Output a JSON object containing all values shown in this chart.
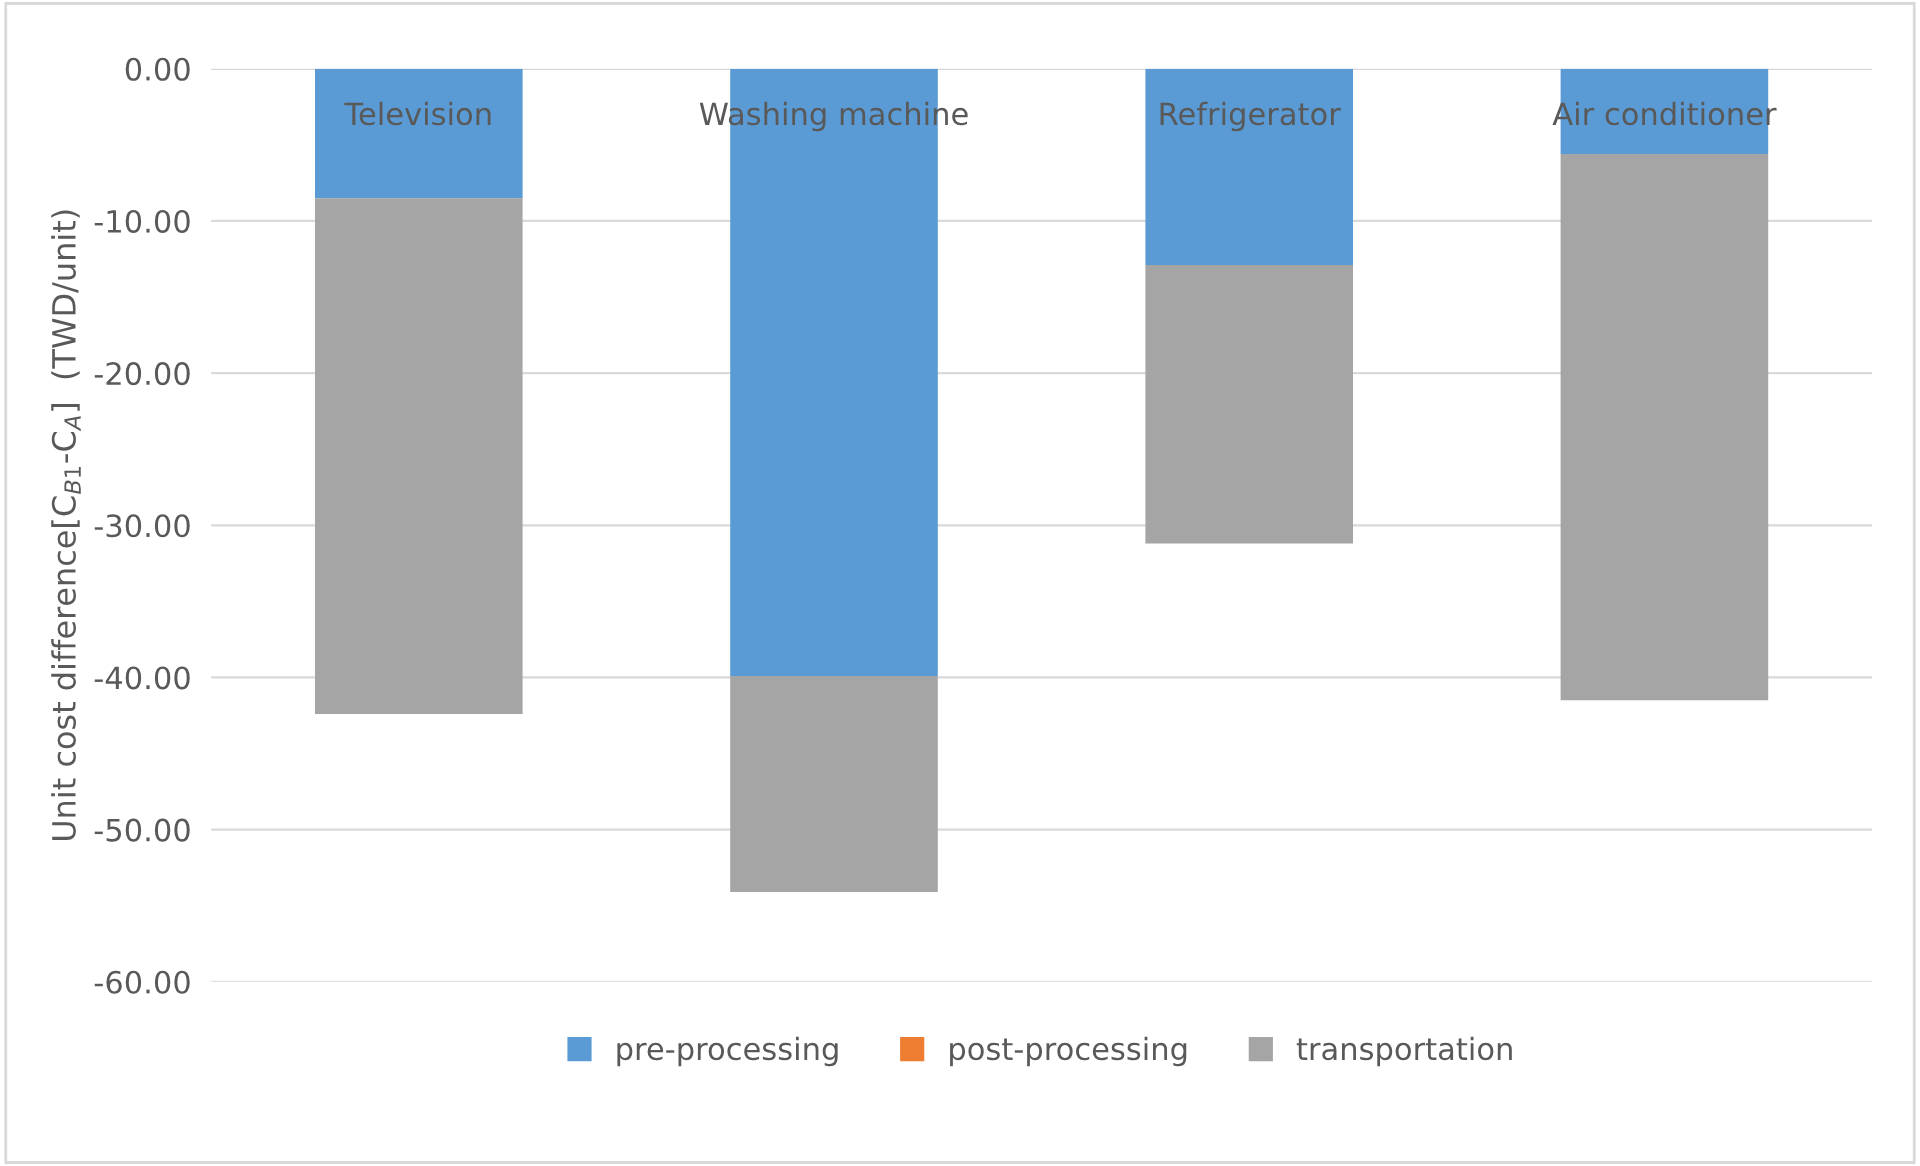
{
  "chart_data": {
    "type": "bar",
    "stacked": true,
    "ylabel": "Unit cost difference[C$_{B1}$-C$_{A}$]  (TWD/unit)",
    "categories": [
      "Television",
      "Washing machine",
      "Refrigerator",
      "Air conditioner"
    ],
    "series": [
      {
        "name": "pre-processing",
        "color": "#5b9bd5",
        "values": [
          -8.5,
          -39.9,
          -12.9,
          -5.6
        ]
      },
      {
        "name": "post-processing",
        "color": "#ed7d31",
        "values": [
          0,
          0,
          0,
          0
        ]
      },
      {
        "name": "transportation",
        "color": "#a5a5a5",
        "values": [
          -33.9,
          -14.2,
          -18.3,
          -35.9
        ]
      }
    ],
    "ylim": [
      -60,
      0
    ],
    "yticks": [
      {
        "value": 0,
        "label": "0.00"
      },
      {
        "value": -10,
        "label": "-10.00"
      },
      {
        "value": -20,
        "label": "-20.00"
      },
      {
        "value": -30,
        "label": "-30.00"
      },
      {
        "value": -40,
        "label": "-40.00"
      },
      {
        "value": -50,
        "label": "-50.00"
      },
      {
        "value": -60,
        "label": "-60.00"
      }
    ],
    "grid": "y",
    "legend": "bottom"
  }
}
